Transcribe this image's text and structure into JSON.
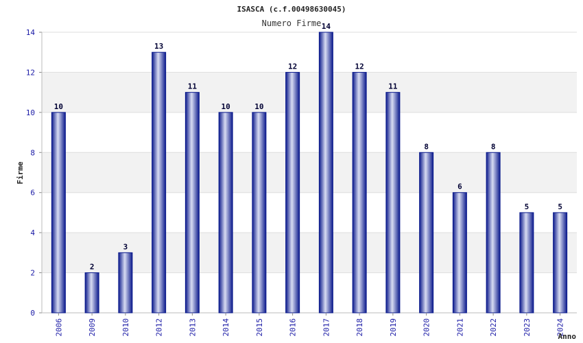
{
  "chart_data": {
    "type": "bar",
    "title": "ISASCA (c.f.00498630045)",
    "subtitle": "Numero Firme",
    "xlabel": "Anno",
    "ylabel": "Firme",
    "categories": [
      "2006",
      "2009",
      "2010",
      "2012",
      "2013",
      "2014",
      "2015",
      "2016",
      "2017",
      "2018",
      "2019",
      "2020",
      "2021",
      "2022",
      "2023",
      "2024"
    ],
    "values": [
      10,
      2,
      3,
      13,
      11,
      10,
      10,
      12,
      14,
      12,
      11,
      8,
      6,
      8,
      5,
      5
    ],
    "ylim": [
      0,
      14
    ],
    "yticks": [
      0,
      2,
      4,
      6,
      8,
      10,
      12,
      14
    ],
    "grid": true,
    "colors": {
      "bar_edge": "#0a1a8c",
      "bar_light": "#d8dcf2",
      "bar_dark": "#0c1a8c",
      "band": "#f2f2f2",
      "grid": "#dddddd",
      "tick_text": "#1a1aa6"
    }
  }
}
